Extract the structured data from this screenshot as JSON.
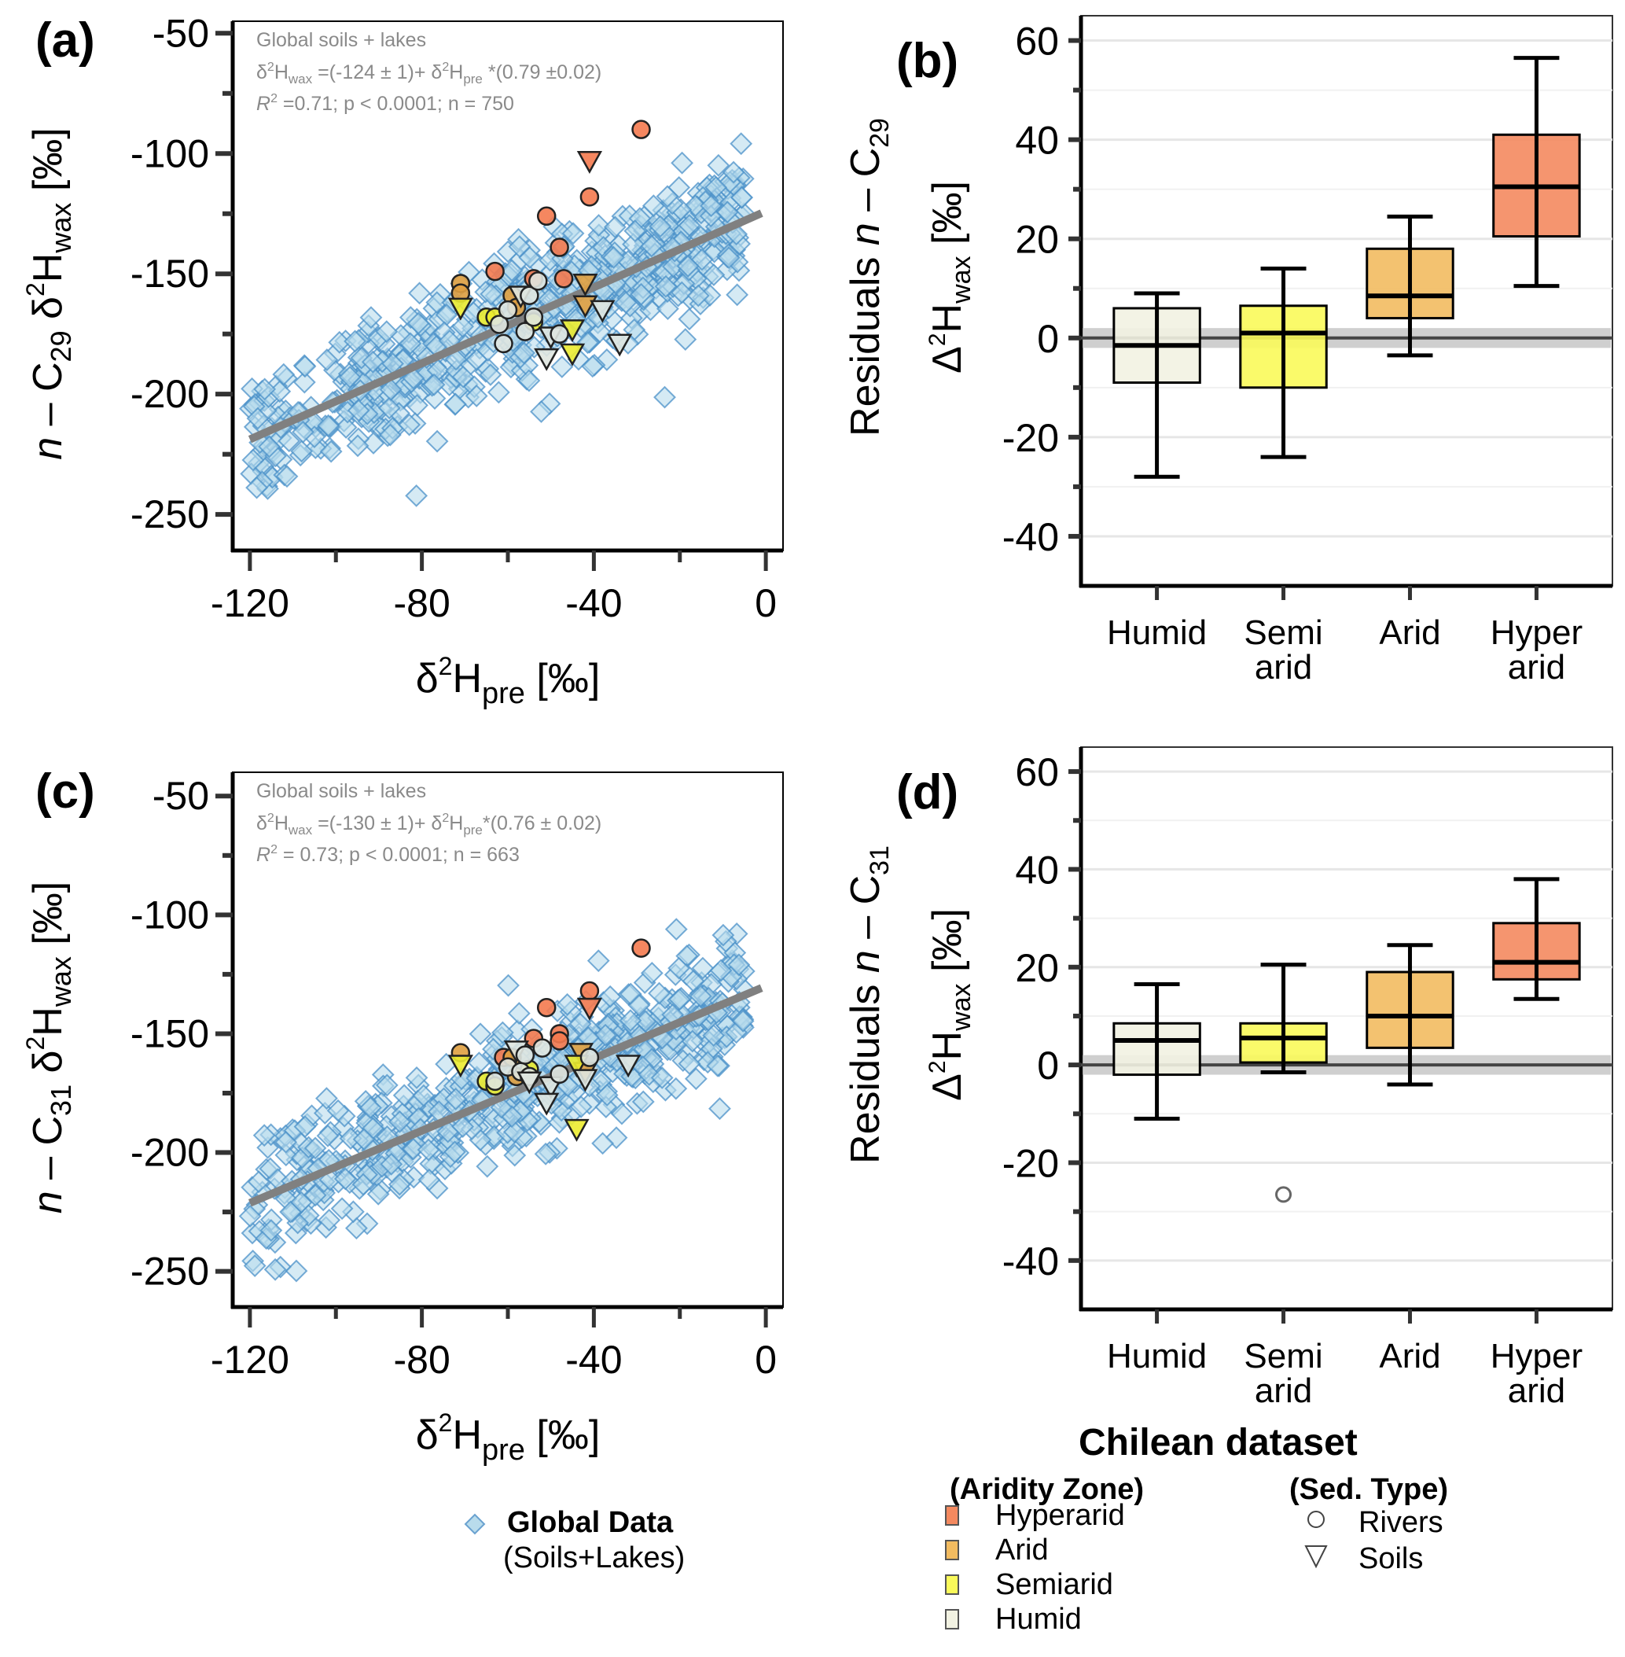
{
  "chart_data": [
    {
      "id": "a",
      "type": "scatter",
      "panel_label": "(a)",
      "xlabel": "δ²H_pre [‰]",
      "ylabel": "n − C29 δ²H_wax [‰]",
      "ylabel_parts": {
        "italic": "n",
        "mid": " – C",
        "sub": "29",
        "delta": " δ",
        "sup": "2",
        "h": "H",
        "sub2": "wax",
        "unit": " [‰]"
      },
      "xlabel_parts": {
        "delta": "δ",
        "sup": "2",
        "h": "H",
        "sub": "pre",
        "unit": " [‰]"
      },
      "xlim": [
        -124,
        4
      ],
      "ylim": [
        -265,
        -45
      ],
      "xticks": [
        -120,
        -80,
        -40,
        0
      ],
      "xtick_labels": [
        "-120",
        "-80",
        "-40",
        "0"
      ],
      "xminor": [
        -100,
        -60,
        -20
      ],
      "yticks": [
        -50,
        -100,
        -150,
        -200,
        -250
      ],
      "ytick_labels": [
        "-50",
        "-100",
        "-150",
        "-200",
        "-250"
      ],
      "yminor": [
        -75,
        -125,
        -175,
        -225
      ],
      "annotation": {
        "line1": "Global soils + lakes",
        "line2_pre": "δ",
        "line2_sup1": "2",
        "line2_h": "H",
        "line2_sub1": "wax",
        "line2_mid": " =(-124 ± 1)+ δ",
        "line2_sup2": "2",
        "line2_h2": "H",
        "line2_sub2": "pre",
        "line2_end": " *(0.79 ±0.02)",
        "line3_r": "R",
        "line3_sup": "2",
        "line3_rest": " =0.71; p < 0.0001; n = 750"
      },
      "regression": {
        "intercept": -124,
        "intercept_err": 1,
        "slope": 0.79,
        "slope_err": 0.02,
        "r2": 0.71,
        "p": "< 0.0001",
        "n": 750,
        "x_range": [
          -120,
          -1
        ]
      },
      "global_spread": {
        "n": 750,
        "x_range": [
          -120,
          -5
        ],
        "residual_sd": 14
      },
      "chilean_points": [
        {
          "x": -29,
          "y": -90,
          "zone": "Hyperarid",
          "type": "Rivers"
        },
        {
          "x": -41,
          "y": -103,
          "zone": "Hyperarid",
          "type": "Soils"
        },
        {
          "x": -41,
          "y": -118,
          "zone": "Hyperarid",
          "type": "Rivers"
        },
        {
          "x": -51,
          "y": -126,
          "zone": "Hyperarid",
          "type": "Rivers"
        },
        {
          "x": -48,
          "y": -139,
          "zone": "Hyperarid",
          "type": "Rivers"
        },
        {
          "x": -63,
          "y": -149,
          "zone": "Hyperarid",
          "type": "Rivers"
        },
        {
          "x": -54,
          "y": -152,
          "zone": "Hyperarid",
          "type": "Rivers"
        },
        {
          "x": -47,
          "y": -152,
          "zone": "Hyperarid",
          "type": "Rivers"
        },
        {
          "x": -71,
          "y": -154,
          "zone": "Arid",
          "type": "Rivers"
        },
        {
          "x": -71,
          "y": -158,
          "zone": "Arid",
          "type": "Rivers"
        },
        {
          "x": -59,
          "y": -159,
          "zone": "Arid",
          "type": "Rivers"
        },
        {
          "x": -42,
          "y": -154,
          "zone": "Arid",
          "type": "Soils"
        },
        {
          "x": -42,
          "y": -163,
          "zone": "Arid",
          "type": "Soils"
        },
        {
          "x": -58,
          "y": -164,
          "zone": "Arid",
          "type": "Rivers"
        },
        {
          "x": -71,
          "y": -164,
          "zone": "Semiarid",
          "type": "Soils"
        },
        {
          "x": -65,
          "y": -168,
          "zone": "Semiarid",
          "type": "Rivers"
        },
        {
          "x": -63,
          "y": -168,
          "zone": "Semiarid",
          "type": "Rivers"
        },
        {
          "x": -45,
          "y": -173,
          "zone": "Semiarid",
          "type": "Soils"
        },
        {
          "x": -45,
          "y": -183,
          "zone": "Semiarid",
          "type": "Soils"
        },
        {
          "x": -54,
          "y": -170,
          "zone": "Semiarid",
          "type": "Rivers"
        },
        {
          "x": -62,
          "y": -171,
          "zone": "Humid",
          "type": "Rivers"
        },
        {
          "x": -60,
          "y": -165,
          "zone": "Humid",
          "type": "Rivers"
        },
        {
          "x": -57,
          "y": -159,
          "zone": "Humid",
          "type": "Soils"
        },
        {
          "x": -55,
          "y": -159,
          "zone": "Humid",
          "type": "Rivers"
        },
        {
          "x": -53,
          "y": -153,
          "zone": "Humid",
          "type": "Rivers"
        },
        {
          "x": -56,
          "y": -174,
          "zone": "Humid",
          "type": "Rivers"
        },
        {
          "x": -54,
          "y": -168,
          "zone": "Humid",
          "type": "Rivers"
        },
        {
          "x": -61,
          "y": -179,
          "zone": "Humid",
          "type": "Rivers"
        },
        {
          "x": -50,
          "y": -176,
          "zone": "Humid",
          "type": "Soils"
        },
        {
          "x": -48,
          "y": -175,
          "zone": "Humid",
          "type": "Rivers"
        },
        {
          "x": -38,
          "y": -165,
          "zone": "Humid",
          "type": "Soils"
        },
        {
          "x": -51,
          "y": -185,
          "zone": "Humid",
          "type": "Soils"
        },
        {
          "x": -34,
          "y": -179,
          "zone": "Humid",
          "type": "Soils"
        }
      ]
    },
    {
      "id": "b",
      "type": "box",
      "panel_label": "(b)",
      "ylabel_line1_parts": {
        "text": "Residuals ",
        "italic": "n",
        "rest": " – C",
        "sub": "29"
      },
      "ylabel_line2_parts": {
        "delta": "Δ",
        "sup": "2",
        "h": "H",
        "sub": "wax",
        "unit": " [‰]"
      },
      "ylim": [
        -50,
        65
      ],
      "yticks": [
        60,
        40,
        20,
        0,
        -20,
        -40
      ],
      "ytick_labels": [
        "60",
        "40",
        "20",
        "0",
        "-20",
        "-40"
      ],
      "yminor": [
        50,
        30,
        10,
        -10,
        -30
      ],
      "reference_band": [
        -2,
        2
      ],
      "categories": [
        {
          "label_line1": "Humid",
          "label_line2": "",
          "min": -28,
          "q1": -9,
          "median": -1.5,
          "q3": 6,
          "max": 9,
          "outliers": []
        },
        {
          "label_line1": "Semi",
          "label_line2": "arid",
          "min": -24,
          "q1": -10,
          "median": 1,
          "q3": 6.5,
          "max": 14,
          "outliers": []
        },
        {
          "label_line1": "Arid",
          "label_line2": "",
          "min": -3.5,
          "q1": 4,
          "median": 8.5,
          "q3": 18,
          "max": 24.5,
          "outliers": []
        },
        {
          "label_line1": "Hyper",
          "label_line2": "arid",
          "min": 10.5,
          "q1": 20.5,
          "median": 30.5,
          "q3": 41,
          "max": 56.5,
          "outliers": []
        }
      ]
    },
    {
      "id": "c",
      "type": "scatter",
      "panel_label": "(c)",
      "xlabel": "δ²H_pre [‰]",
      "ylabel": "n − C31 δ²H_wax [‰]",
      "ylabel_parts": {
        "italic": "n",
        "mid": " – C",
        "sub": "31",
        "delta": " δ",
        "sup": "2",
        "h": "H",
        "sub2": "wax",
        "unit": " [‰]"
      },
      "xlabel_parts": {
        "delta": "δ",
        "sup": "2",
        "h": "H",
        "sub": "pre",
        "unit": " [‰]"
      },
      "xlim": [
        -124,
        4
      ],
      "ylim": [
        -265,
        -40
      ],
      "xticks": [
        -120,
        -80,
        -40,
        0
      ],
      "xtick_labels": [
        "-120",
        "-80",
        "-40",
        "0"
      ],
      "xminor": [
        -100,
        -60,
        -20
      ],
      "yticks": [
        -50,
        -100,
        -150,
        -200,
        -250
      ],
      "ytick_labels": [
        "-50",
        "-100",
        "-150",
        "-200",
        "-250"
      ],
      "yminor": [
        -75,
        -125,
        -175,
        -225
      ],
      "annotation": {
        "line1": "Global soils + lakes",
        "line2_pre": "δ",
        "line2_sup1": "2",
        "line2_h": "H",
        "line2_sub1": "wax",
        "line2_mid": " =(-130 ± 1)+ δ",
        "line2_sup2": "2",
        "line2_h2": "H",
        "line2_sub2": "pre",
        "line2_end": "*(0.76 ± 0.02)",
        "line3_r": "R",
        "line3_sup": "2",
        "line3_rest": " = 0.73; p < 0.0001; n = 663"
      },
      "regression": {
        "intercept": -130,
        "intercept_err": 1,
        "slope": 0.76,
        "slope_err": 0.02,
        "r2": 0.73,
        "p": "< 0.0001",
        "n": 663,
        "x_range": [
          -120,
          -1
        ]
      },
      "global_spread": {
        "n": 663,
        "x_range": [
          -120,
          -5
        ],
        "residual_sd": 13
      },
      "chilean_points": [
        {
          "x": -29,
          "y": -114,
          "zone": "Hyperarid",
          "type": "Rivers"
        },
        {
          "x": -41,
          "y": -132,
          "zone": "Hyperarid",
          "type": "Rivers"
        },
        {
          "x": -41,
          "y": -139,
          "zone": "Hyperarid",
          "type": "Soils"
        },
        {
          "x": -51,
          "y": -139,
          "zone": "Hyperarid",
          "type": "Rivers"
        },
        {
          "x": -48,
          "y": -150,
          "zone": "Hyperarid",
          "type": "Rivers"
        },
        {
          "x": -48,
          "y": -153,
          "zone": "Hyperarid",
          "type": "Rivers"
        },
        {
          "x": -54,
          "y": -152,
          "zone": "Hyperarid",
          "type": "Rivers"
        },
        {
          "x": -61,
          "y": -160,
          "zone": "Hyperarid",
          "type": "Rivers"
        },
        {
          "x": -71,
          "y": -158,
          "zone": "Arid",
          "type": "Rivers"
        },
        {
          "x": -59,
          "y": -160,
          "zone": "Arid",
          "type": "Rivers"
        },
        {
          "x": -43,
          "y": -158,
          "zone": "Arid",
          "type": "Soils"
        },
        {
          "x": -42,
          "y": -166,
          "zone": "Arid",
          "type": "Soils"
        },
        {
          "x": -58,
          "y": -168,
          "zone": "Arid",
          "type": "Rivers"
        },
        {
          "x": -71,
          "y": -163,
          "zone": "Semiarid",
          "type": "Soils"
        },
        {
          "x": -65,
          "y": -170,
          "zone": "Semiarid",
          "type": "Rivers"
        },
        {
          "x": -63,
          "y": -172,
          "zone": "Semiarid",
          "type": "Rivers"
        },
        {
          "x": -55,
          "y": -165,
          "zone": "Semiarid",
          "type": "Rivers"
        },
        {
          "x": -44,
          "y": -163,
          "zone": "Semiarid",
          "type": "Soils"
        },
        {
          "x": -44,
          "y": -190,
          "zone": "Semiarid",
          "type": "Soils"
        },
        {
          "x": -58,
          "y": -157,
          "zone": "Humid",
          "type": "Soils"
        },
        {
          "x": -60,
          "y": -164,
          "zone": "Humid",
          "type": "Rivers"
        },
        {
          "x": -56,
          "y": -159,
          "zone": "Humid",
          "type": "Rivers"
        },
        {
          "x": -52,
          "y": -156,
          "zone": "Humid",
          "type": "Rivers"
        },
        {
          "x": -57,
          "y": -166,
          "zone": "Humid",
          "type": "Rivers"
        },
        {
          "x": -55,
          "y": -168,
          "zone": "Humid",
          "type": "Rivers"
        },
        {
          "x": -63,
          "y": -170,
          "zone": "Humid",
          "type": "Rivers"
        },
        {
          "x": -55,
          "y": -170,
          "zone": "Humid",
          "type": "Soils"
        },
        {
          "x": -50,
          "y": -172,
          "zone": "Humid",
          "type": "Soils"
        },
        {
          "x": -48,
          "y": -167,
          "zone": "Humid",
          "type": "Rivers"
        },
        {
          "x": -51,
          "y": -179,
          "zone": "Humid",
          "type": "Soils"
        },
        {
          "x": -42,
          "y": -169,
          "zone": "Humid",
          "type": "Soils"
        },
        {
          "x": -32,
          "y": -163,
          "zone": "Humid",
          "type": "Soils"
        },
        {
          "x": -41,
          "y": -160,
          "zone": "Humid",
          "type": "Rivers"
        }
      ]
    },
    {
      "id": "d",
      "type": "box",
      "panel_label": "(d)",
      "ylabel_line1_parts": {
        "text": "Residuals ",
        "italic": "n",
        "rest": " – C",
        "sub": "31"
      },
      "ylabel_line2_parts": {
        "delta": "Δ",
        "sup": "2",
        "h": "H",
        "sub": "wax",
        "unit": " [‰]"
      },
      "ylim": [
        -50,
        65
      ],
      "yticks": [
        60,
        40,
        20,
        0,
        -20,
        -40
      ],
      "ytick_labels": [
        "60",
        "40",
        "20",
        "0",
        "-20",
        "-40"
      ],
      "yminor": [
        50,
        30,
        10,
        -10,
        -30
      ],
      "reference_band": [
        -2,
        2
      ],
      "categories": [
        {
          "label_line1": "Humid",
          "label_line2": "",
          "min": -11,
          "q1": -2,
          "median": 5,
          "q3": 8.5,
          "max": 16.5,
          "outliers": []
        },
        {
          "label_line1": "Semi",
          "label_line2": "arid",
          "min": -1.5,
          "q1": 0.5,
          "median": 5.5,
          "q3": 8.5,
          "max": 20.5,
          "outliers": [
            -26.5
          ]
        },
        {
          "label_line1": "Arid",
          "label_line2": "",
          "min": -4,
          "q1": 3.5,
          "median": 10,
          "q3": 19,
          "max": 24.5,
          "outliers": []
        },
        {
          "label_line1": "Hyper",
          "label_line2": "arid",
          "min": 13.5,
          "q1": 17.5,
          "median": 21,
          "q3": 29,
          "max": 38,
          "outliers": []
        }
      ]
    }
  ],
  "legend": {
    "global": {
      "title": "Global Data",
      "subtitle": "(Soils+Lakes)",
      "symbol": "diamond-icon"
    },
    "chilean": {
      "title": "Chilean dataset",
      "zone_title": "(Aridity Zone)",
      "zones": [
        {
          "label": "Hyperarid",
          "color": "#f4895f"
        },
        {
          "label": "Arid",
          "color": "#f2bb60"
        },
        {
          "label": "Semiarid",
          "color": "#fafa5a"
        },
        {
          "label": "Humid",
          "color": "#f2f2e2"
        }
      ],
      "type_title": "(Sed. Type)",
      "types": [
        {
          "label": "Rivers",
          "symbol": "circle-icon"
        },
        {
          "label": "Soils",
          "symbol": "triangle-down-icon"
        }
      ]
    }
  },
  "colors": {
    "global_fill": "#b9dcec",
    "global_stroke": "#4a90c8",
    "regression_line": "#808080",
    "Hyperarid": "#f4895f",
    "Arid": "#f2bb60",
    "Semiarid": "#fafa5a",
    "Humid": "#f2f2e2",
    "scatter_Hyperarid": "#f47a4f",
    "scatter_Arid": "#e0a040",
    "scatter_Semiarid": "#ecec30",
    "scatter_Humid": "#dfe6e0"
  }
}
